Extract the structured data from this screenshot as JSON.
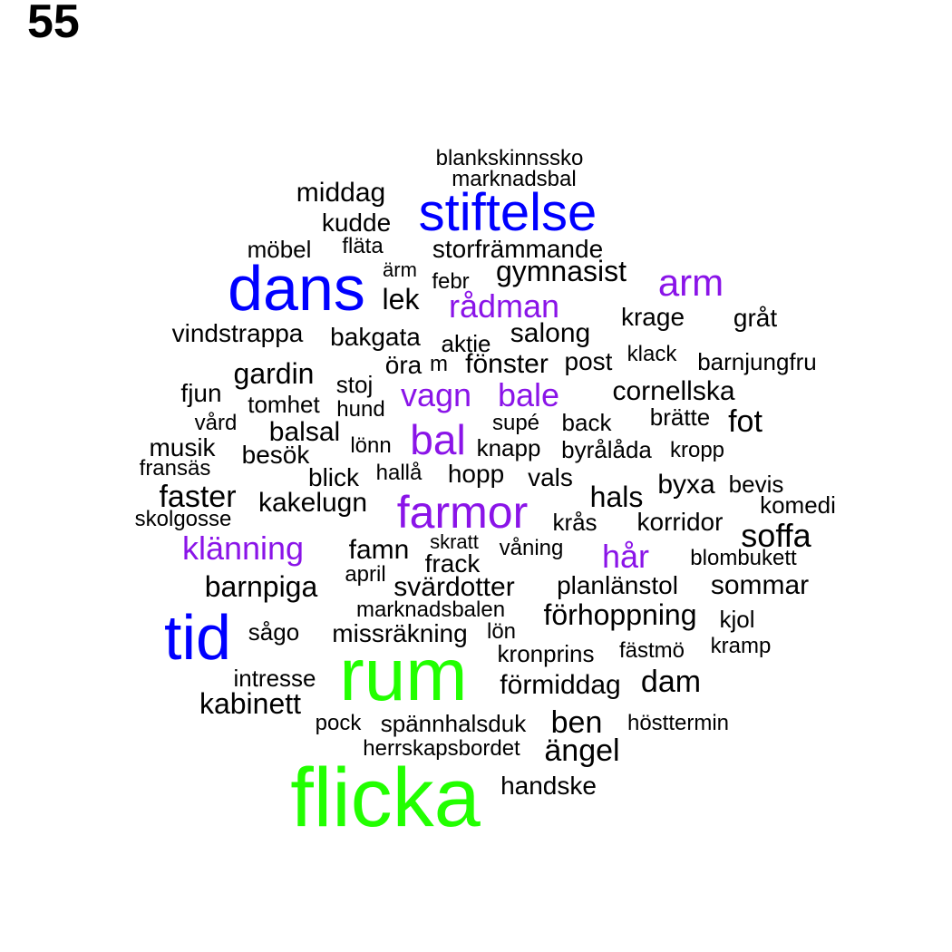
{
  "page_number": "55",
  "colors": {
    "top": "#22ff00",
    "high": "#0000ff",
    "mid": "#8a14e8",
    "base": "#000000"
  },
  "words": [
    {
      "text": "flicka",
      "tier": "top"
    },
    {
      "text": "rum",
      "tier": "top"
    },
    {
      "text": "dans",
      "tier": "high"
    },
    {
      "text": "tid",
      "tier": "high"
    },
    {
      "text": "stiftelse",
      "tier": "high"
    },
    {
      "text": "farmor",
      "tier": "mid"
    },
    {
      "text": "bal",
      "tier": "mid"
    },
    {
      "text": "arm",
      "tier": "mid"
    },
    {
      "text": "rådman",
      "tier": "mid"
    },
    {
      "text": "vagn",
      "tier": "mid"
    },
    {
      "text": "bale",
      "tier": "mid"
    },
    {
      "text": "klänning",
      "tier": "mid"
    },
    {
      "text": "hår",
      "tier": "mid"
    },
    {
      "text": "blankskinnssko",
      "tier": "base"
    },
    {
      "text": "marknadsbal",
      "tier": "base"
    },
    {
      "text": "middag",
      "tier": "base"
    },
    {
      "text": "kudde",
      "tier": "base"
    },
    {
      "text": "möbel",
      "tier": "base"
    },
    {
      "text": "fläta",
      "tier": "base"
    },
    {
      "text": "storfrämmande",
      "tier": "base"
    },
    {
      "text": "ärm",
      "tier": "base"
    },
    {
      "text": "febr",
      "tier": "base"
    },
    {
      "text": "gymnasist",
      "tier": "base"
    },
    {
      "text": "lek",
      "tier": "base"
    },
    {
      "text": "krage",
      "tier": "base"
    },
    {
      "text": "gråt",
      "tier": "base"
    },
    {
      "text": "vindstrappa",
      "tier": "base"
    },
    {
      "text": "bakgata",
      "tier": "base"
    },
    {
      "text": "aktie",
      "tier": "base"
    },
    {
      "text": "salong",
      "tier": "base"
    },
    {
      "text": "klack",
      "tier": "base"
    },
    {
      "text": "barnjungfru",
      "tier": "base"
    },
    {
      "text": "gardin",
      "tier": "base"
    },
    {
      "text": "öra",
      "tier": "base"
    },
    {
      "text": "m",
      "tier": "base"
    },
    {
      "text": "fönster",
      "tier": "base"
    },
    {
      "text": "post",
      "tier": "base"
    },
    {
      "text": "stoj",
      "tier": "base"
    },
    {
      "text": "fjun",
      "tier": "base"
    },
    {
      "text": "tomhet",
      "tier": "base"
    },
    {
      "text": "hund",
      "tier": "base"
    },
    {
      "text": "cornellska",
      "tier": "base"
    },
    {
      "text": "vård",
      "tier": "base"
    },
    {
      "text": "balsal",
      "tier": "base"
    },
    {
      "text": "supé",
      "tier": "base"
    },
    {
      "text": "back",
      "tier": "base"
    },
    {
      "text": "brätte",
      "tier": "base"
    },
    {
      "text": "fot",
      "tier": "base"
    },
    {
      "text": "musik",
      "tier": "base"
    },
    {
      "text": "besök",
      "tier": "base"
    },
    {
      "text": "lönn",
      "tier": "base"
    },
    {
      "text": "knapp",
      "tier": "base"
    },
    {
      "text": "byrålåda",
      "tier": "base"
    },
    {
      "text": "kropp",
      "tier": "base"
    },
    {
      "text": "fransäs",
      "tier": "base"
    },
    {
      "text": "blick",
      "tier": "base"
    },
    {
      "text": "hallå",
      "tier": "base"
    },
    {
      "text": "hopp",
      "tier": "base"
    },
    {
      "text": "vals",
      "tier": "base"
    },
    {
      "text": "byxa",
      "tier": "base"
    },
    {
      "text": "bevis",
      "tier": "base"
    },
    {
      "text": "faster",
      "tier": "base"
    },
    {
      "text": "kakelugn",
      "tier": "base"
    },
    {
      "text": "hals",
      "tier": "base"
    },
    {
      "text": "komedi",
      "tier": "base"
    },
    {
      "text": "skolgosse",
      "tier": "base"
    },
    {
      "text": "krås",
      "tier": "base"
    },
    {
      "text": "korridor",
      "tier": "base"
    },
    {
      "text": "soffa",
      "tier": "base"
    },
    {
      "text": "famn",
      "tier": "base"
    },
    {
      "text": "skratt",
      "tier": "base"
    },
    {
      "text": "våning",
      "tier": "base"
    },
    {
      "text": "frack",
      "tier": "base"
    },
    {
      "text": "blombukett",
      "tier": "base"
    },
    {
      "text": "april",
      "tier": "base"
    },
    {
      "text": "barnpiga",
      "tier": "base"
    },
    {
      "text": "svärdotter",
      "tier": "base"
    },
    {
      "text": "planlänstol",
      "tier": "base"
    },
    {
      "text": "sommar",
      "tier": "base"
    },
    {
      "text": "marknadsbalen",
      "tier": "base"
    },
    {
      "text": "förhoppning",
      "tier": "base"
    },
    {
      "text": "kjol",
      "tier": "base"
    },
    {
      "text": "sågo",
      "tier": "base"
    },
    {
      "text": "missräkning",
      "tier": "base"
    },
    {
      "text": "lön",
      "tier": "base"
    },
    {
      "text": "kronprins",
      "tier": "base"
    },
    {
      "text": "fästmö",
      "tier": "base"
    },
    {
      "text": "kramp",
      "tier": "base"
    },
    {
      "text": "intresse",
      "tier": "base"
    },
    {
      "text": "förmiddag",
      "tier": "base"
    },
    {
      "text": "dam",
      "tier": "base"
    },
    {
      "text": "kabinett",
      "tier": "base"
    },
    {
      "text": "pock",
      "tier": "base"
    },
    {
      "text": "spännhalsduk",
      "tier": "base"
    },
    {
      "text": "ben",
      "tier": "base"
    },
    {
      "text": "hösttermin",
      "tier": "base"
    },
    {
      "text": "herrskapsbordet",
      "tier": "base"
    },
    {
      "text": "ängel",
      "tier": "base"
    },
    {
      "text": "handske",
      "tier": "base"
    }
  ]
}
